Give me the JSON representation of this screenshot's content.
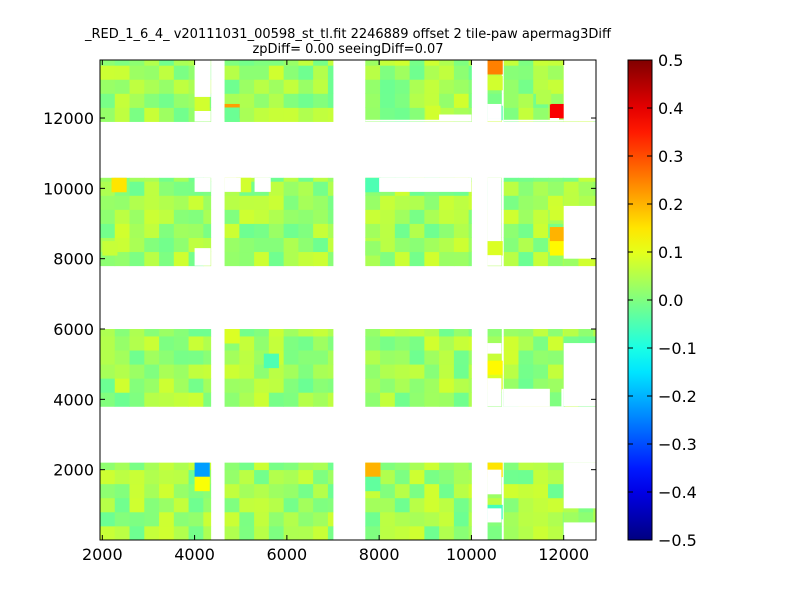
{
  "chart_data": {
    "type": "heatmap",
    "title_line1": "_RED_1_6_4_ v20111031_00598_st_tl.fit 2246889 offset 2 tile-paw apermag3Diff",
    "title_line2": "zpDiff= 0.00 seeingDiff=0.07",
    "xlim": [
      1950,
      12700
    ],
    "ylim": [
      0,
      13650
    ],
    "x_ticks": [
      2000,
      4000,
      6000,
      8000,
      10000,
      12000
    ],
    "y_ticks": [
      2000,
      4000,
      6000,
      8000,
      10000,
      12000
    ],
    "colorbar": {
      "range": [
        -0.5,
        0.5
      ],
      "ticks": [
        0.5,
        0.4,
        0.3,
        0.2,
        0.1,
        0.0,
        -0.1,
        -0.2,
        -0.3,
        -0.4,
        -0.5
      ],
      "tick_labels": [
        "0.5",
        "0.4",
        "0.3",
        "0.2",
        "0.1",
        "0.0",
        "−0.1",
        "−0.2",
        "−0.3",
        "−0.4",
        "−0.5"
      ],
      "colormap": "jet"
    },
    "cell_width": 320,
    "cell_height": 400,
    "column_blocks": [
      [
        1950,
        4350
      ],
      [
        4650,
        7000
      ],
      [
        7700,
        10000
      ],
      [
        10350,
        10650
      ],
      [
        10700,
        12000
      ],
      [
        12000,
        12700
      ]
    ],
    "row_blocks": [
      [
        0,
        2200
      ],
      [
        3800,
        6000
      ],
      [
        7800,
        10300
      ],
      [
        11900,
        13650
      ]
    ],
    "background_value": 0.03,
    "missing": [
      {
        "x": [
          12000,
          12700
        ],
        "y": [
          0,
          500
        ]
      },
      {
        "x": [
          12000,
          12700
        ],
        "y": [
          900,
          2200
        ]
      },
      {
        "x": [
          12000,
          12700
        ],
        "y": [
          3800,
          5600
        ]
      },
      {
        "x": [
          12000,
          12700
        ],
        "y": [
          8000,
          9500
        ]
      },
      {
        "x": [
          12000,
          12700
        ],
        "y": [
          11900,
          13650
        ]
      },
      {
        "x": [
          10350,
          10650
        ],
        "y": [
          500,
          900
        ]
      },
      {
        "x": [
          10350,
          10650
        ],
        "y": [
          1300,
          2000
        ]
      },
      {
        "x": [
          10350,
          10650
        ],
        "y": [
          3800,
          4600
        ]
      },
      {
        "x": [
          10350,
          10650
        ],
        "y": [
          5300,
          5600
        ]
      },
      {
        "x": [
          10350,
          10650
        ],
        "y": [
          7800,
          8100
        ]
      },
      {
        "x": [
          10350,
          10650
        ],
        "y": [
          8500,
          10300
        ]
      },
      {
        "x": [
          10350,
          10650
        ],
        "y": [
          11900,
          12000
        ]
      },
      {
        "x": [
          10350,
          10650
        ],
        "y": [
          12000,
          12400
        ]
      },
      {
        "x": [
          10700,
          12000
        ],
        "y": [
          3800,
          3700
        ]
      },
      {
        "x": [
          10700,
          11700
        ],
        "y": [
          3800,
          4300
        ]
      },
      {
        "x": [
          11950,
          12000
        ],
        "y": [
          3800,
          4300
        ]
      },
      {
        "x": [
          10700,
          12000
        ],
        "y": [
          11900,
          11950
        ]
      },
      {
        "x": [
          11700,
          11900
        ],
        "y": [
          11900,
          12000
        ]
      },
      {
        "x": [
          4000,
          4350
        ],
        "y": [
          11900,
          12200
        ]
      },
      {
        "x": [
          4000,
          4350
        ],
        "y": [
          12600,
          13650
        ]
      },
      {
        "x": [
          4000,
          4350
        ],
        "y": [
          7800,
          8300
        ]
      },
      {
        "x": [
          4000,
          4350
        ],
        "y": [
          10300,
          9900
        ]
      },
      {
        "x": [
          4650,
          5000
        ],
        "y": [
          9900,
          10300
        ]
      },
      {
        "x": [
          5300,
          5650
        ],
        "y": [
          9900,
          10300
        ]
      },
      {
        "x": [
          8000,
          10000
        ],
        "y": [
          9900,
          10300
        ]
      },
      {
        "x": [
          9300,
          10000
        ],
        "y": [
          11900,
          12100
        ]
      },
      {
        "x": [
          7700,
          10000
        ],
        "y": [
          11900,
          11950
        ]
      }
    ],
    "highlights": [
      {
        "x": 4000,
        "y": 1800,
        "v": -0.22
      },
      {
        "x": 4000,
        "y": 1400,
        "v": 0.12
      },
      {
        "x": 7700,
        "y": 1800,
        "v": 0.2
      },
      {
        "x": 7700,
        "y": 1400,
        "v": -0.03
      },
      {
        "x": 10350,
        "y": 1800,
        "v": 0.15
      },
      {
        "x": 10350,
        "y": 600,
        "v": -0.06
      },
      {
        "x": 10350,
        "y": 4700,
        "v": 0.13
      },
      {
        "x": 10350,
        "y": 4300,
        "v": 0.09
      },
      {
        "x": 4650,
        "y": 5600,
        "v": 0.09
      },
      {
        "x": 5500,
        "y": 4900,
        "v": -0.05
      },
      {
        "x": 11700,
        "y": 3800,
        "v": 0.0
      },
      {
        "x": 2200,
        "y": 9900,
        "v": 0.15
      },
      {
        "x": 4900,
        "y": 9900,
        "v": 0.08
      },
      {
        "x": 7700,
        "y": 9900,
        "v": -0.05
      },
      {
        "x": 10350,
        "y": 8100,
        "v": 0.09
      },
      {
        "x": 11700,
        "y": 8500,
        "v": 0.2
      },
      {
        "x": 11700,
        "y": 8100,
        "v": 0.13
      },
      {
        "x": 11700,
        "y": 9100,
        "v": 0.08
      },
      {
        "x": 12000,
        "y": 9500,
        "v": 0.06
      },
      {
        "x": 4650,
        "y": 12000,
        "v": 0.22
      },
      {
        "x": 4650,
        "y": 11900,
        "v": -0.02
      },
      {
        "x": 10350,
        "y": 13250,
        "v": 0.25
      },
      {
        "x": 10350,
        "y": 12800,
        "v": 0.08
      },
      {
        "x": 11700,
        "y": 12000,
        "v": 0.38
      },
      {
        "x": 11400,
        "y": 12400,
        "v": 0.05
      },
      {
        "x": 10350,
        "y": 11950,
        "v": -0.04
      },
      {
        "x": 4000,
        "y": 12200,
        "v": 0.08
      },
      {
        "x": 9000,
        "y": 11950,
        "v": 0.08
      },
      {
        "x": 7700,
        "y": 8100,
        "v": 0.02
      },
      {
        "x": 2000,
        "y": 8100,
        "v": 0.07
      }
    ]
  }
}
